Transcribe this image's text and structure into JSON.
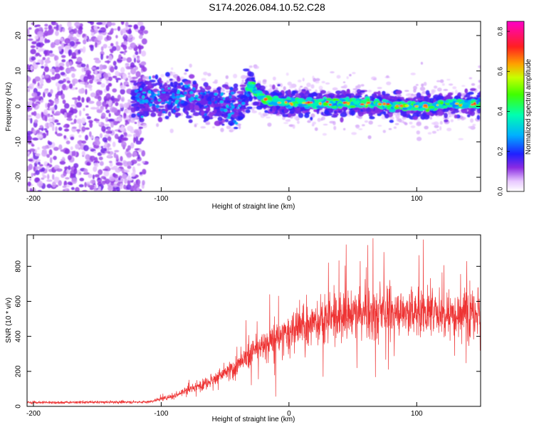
{
  "figure_title": "S174.2026.084.10.52.C28",
  "chart_data": [
    {
      "type": "heatmap",
      "title": "S174.2026.084.10.52.C28",
      "xlabel": "Height of straight line (km)",
      "ylabel": "Frequency (Hz)",
      "xlim": [
        -205,
        150
      ],
      "ylim": [
        -24,
        24
      ],
      "xticks": [
        -200,
        -100,
        0,
        100
      ],
      "yticks": [
        -20,
        -10,
        0,
        10,
        20
      ],
      "colorbar": {
        "label": "Normalized spectral amplitude",
        "range": [
          0.0,
          0.85
        ],
        "ticks": [
          0.0,
          0.2,
          0.4,
          0.6,
          0.8
        ]
      },
      "ridge": {
        "description": "narrow-band signal",
        "points": [
          {
            "x": -120,
            "y": 2
          },
          {
            "x": -80,
            "y": 3
          },
          {
            "x": -40,
            "y": -1
          },
          {
            "x": -30,
            "y": 6
          },
          {
            "x": -20,
            "y": 2
          },
          {
            "x": 0,
            "y": 1
          },
          {
            "x": 50,
            "y": 1
          },
          {
            "x": 100,
            "y": 0
          },
          {
            "x": 150,
            "y": 1
          }
        ]
      },
      "noise_region": {
        "x_from": -205,
        "x_to": -120
      }
    },
    {
      "type": "line",
      "xlabel": "Height of straight line (km)",
      "ylabel": "SNR (10 * v/v)",
      "xlim": [
        -205,
        150
      ],
      "ylim": [
        0,
        980
      ],
      "xticks": [
        -200,
        -100,
        0,
        100
      ],
      "yticks": [
        0,
        200,
        400,
        600,
        800
      ],
      "color": "#ee3333",
      "trend": [
        {
          "x": -205,
          "y": 22
        },
        {
          "x": -110,
          "y": 25
        },
        {
          "x": -90,
          "y": 60
        },
        {
          "x": -60,
          "y": 150
        },
        {
          "x": -40,
          "y": 230
        },
        {
          "x": -25,
          "y": 330
        },
        {
          "x": 0,
          "y": 420
        },
        {
          "x": 20,
          "y": 480
        },
        {
          "x": 40,
          "y": 520
        },
        {
          "x": 80,
          "y": 540
        },
        {
          "x": 150,
          "y": 540
        }
      ]
    }
  ]
}
